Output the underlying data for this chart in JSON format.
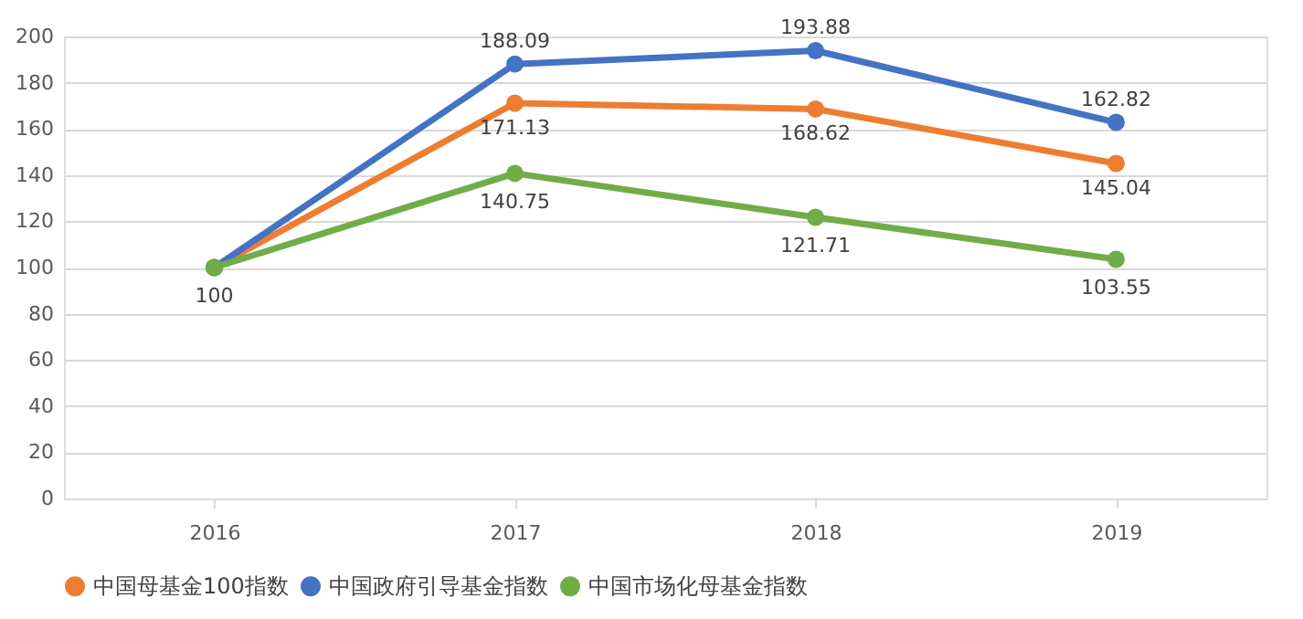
{
  "chart_data": {
    "type": "line",
    "categories": [
      "2016",
      "2017",
      "2018",
      "2019"
    ],
    "series": [
      {
        "name": "中国母基金100指数",
        "color": "#ed7d31",
        "values": [
          100,
          171.13,
          168.62,
          145.04
        ],
        "value_labels": [
          null,
          "171.13",
          "168.62",
          "145.04"
        ]
      },
      {
        "name": "中国政府引导基金指数",
        "color": "#4472c4",
        "values": [
          100,
          188.09,
          193.88,
          162.82
        ],
        "value_labels": [
          null,
          "188.09",
          "193.88",
          "162.82"
        ]
      },
      {
        "name": "中国市场化母基金指数",
        "color": "#70ad47",
        "values": [
          100,
          140.75,
          121.71,
          103.55
        ],
        "value_labels": [
          "100",
          "140.75",
          "121.71",
          "103.55"
        ]
      }
    ],
    "ylim": [
      0,
      200
    ],
    "yticks": [
      0,
      20,
      40,
      60,
      80,
      100,
      120,
      140,
      160,
      180,
      200
    ],
    "grid": "y",
    "legend": "bottom",
    "marker": "circle",
    "line_style": "solid"
  }
}
